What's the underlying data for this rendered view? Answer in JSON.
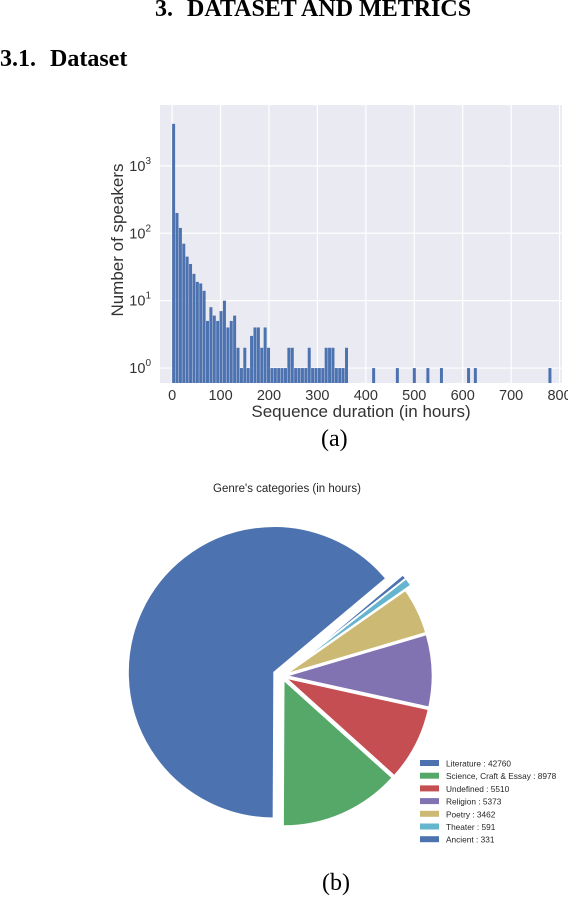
{
  "section": {
    "number": "3.",
    "title": "DATASET AND METRICS"
  },
  "subsection": {
    "number": "3.1.",
    "title": "Dataset"
  },
  "caption_a": "(a)",
  "caption_b": "(b)",
  "chart_data": [
    {
      "type": "bar",
      "subtype": "histogram",
      "xlabel": "Sequence duration (in hours)",
      "ylabel": "Number of speakers",
      "yscale": "log",
      "xlim": [
        -25,
        805
      ],
      "ylim": [
        0.6,
        8000
      ],
      "xticks": [
        "0",
        "100",
        "200",
        "300",
        "400",
        "500",
        "600",
        "700",
        "800"
      ],
      "yticks": [
        {
          "base": "10",
          "exp": "0"
        },
        {
          "base": "10",
          "exp": "1"
        },
        {
          "base": "10",
          "exp": "2"
        },
        {
          "base": "10",
          "exp": "3"
        }
      ],
      "grid": true,
      "bin_width": 7,
      "bins_start": [
        0,
        7,
        14,
        21,
        28,
        35,
        42,
        49,
        56,
        63,
        70,
        77,
        84,
        91,
        98,
        105,
        112,
        119,
        126,
        133,
        140,
        147,
        154,
        161,
        168,
        175,
        182,
        189,
        196,
        203,
        210,
        217,
        224,
        231,
        238,
        245,
        252,
        259,
        266,
        273,
        280,
        287,
        294,
        301,
        308,
        315,
        322,
        329,
        336,
        343,
        350,
        357,
        413,
        462,
        497,
        525,
        553,
        609,
        623,
        777
      ],
      "counts": [
        4200,
        200,
        120,
        70,
        45,
        35,
        25,
        19,
        18,
        14,
        5,
        8,
        6,
        5,
        7,
        10,
        4,
        5,
        6,
        2,
        1,
        2,
        1,
        3,
        4,
        4,
        2,
        4,
        2,
        1,
        1,
        1,
        1,
        1,
        2,
        2,
        1,
        1,
        1,
        1,
        2,
        1,
        1,
        1,
        1,
        2,
        2,
        2,
        1,
        1,
        1,
        2,
        1,
        1,
        1,
        1,
        1,
        1,
        1,
        1
      ],
      "bar_color": "#4c72b0",
      "background": "#eaeaf2"
    },
    {
      "type": "pie",
      "title": "Genre's categories (in hours)",
      "legend_position": "bottom-right",
      "slices": [
        {
          "label": "Literature : 42760",
          "value": 42760,
          "color": "#4c72b0"
        },
        {
          "label": "Science, Craft & Essay : 8978",
          "value": 8978,
          "color": "#55a868"
        },
        {
          "label": "Undefined : 5510",
          "value": 5510,
          "color": "#c44e52"
        },
        {
          "label": "Religion : 5373",
          "value": 5373,
          "color": "#8172b2"
        },
        {
          "label": "Poetry : 3462",
          "value": 3462,
          "color": "#ccb974"
        },
        {
          "label": "Theater : 591",
          "value": 591,
          "color": "#64b5cd"
        },
        {
          "label": "Ancient : 331",
          "value": 331,
          "color": "#4c72b0"
        }
      ]
    }
  ]
}
